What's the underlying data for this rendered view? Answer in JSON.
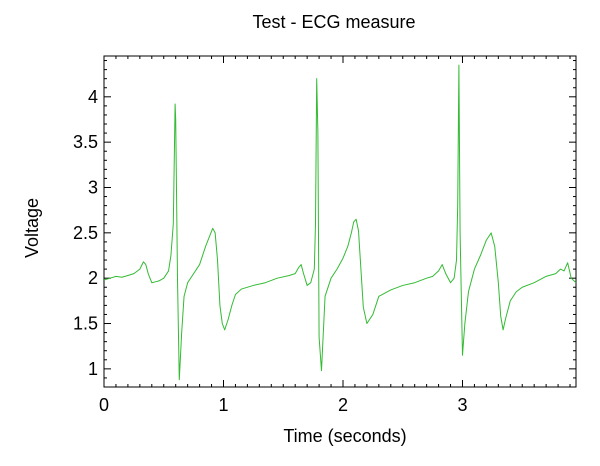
{
  "chart_data": {
    "type": "line",
    "title": "Test - ECG measure",
    "xlabel": "Time (seconds)",
    "ylabel": "Voltage",
    "xlim": [
      0,
      3.95
    ],
    "ylim": [
      0.8,
      4.45
    ],
    "grid": false,
    "legend": "none",
    "x_ticks": [
      0,
      1,
      2,
      3
    ],
    "x_tick_labels": [
      "0",
      "1",
      "2",
      "3"
    ],
    "y_ticks": [
      1,
      1.5,
      2,
      2.5,
      3,
      3.5,
      4
    ],
    "y_tick_labels": [
      "1",
      "1.5",
      "2",
      "2.5",
      "3",
      "3.5",
      "4"
    ],
    "colors": {
      "series": "#33bb33",
      "axes": "#000000"
    },
    "series": [
      {
        "x": [
          0.0,
          0.05,
          0.1,
          0.15,
          0.2,
          0.25,
          0.3,
          0.33,
          0.35,
          0.37,
          0.4,
          0.43,
          0.46,
          0.5,
          0.54,
          0.56,
          0.58,
          0.595,
          0.6,
          0.615,
          0.63,
          0.65,
          0.67,
          0.7,
          0.75,
          0.8,
          0.85,
          0.88,
          0.91,
          0.93,
          0.95,
          0.97,
          0.99,
          1.01,
          1.04,
          1.07,
          1.1,
          1.15,
          1.25,
          1.35,
          1.45,
          1.55,
          1.6,
          1.63,
          1.65,
          1.67,
          1.7,
          1.73,
          1.76,
          1.77,
          1.78,
          1.79,
          1.8,
          1.82,
          1.85,
          1.9,
          1.95,
          2.0,
          2.04,
          2.07,
          2.09,
          2.11,
          2.13,
          2.15,
          2.17,
          2.2,
          2.25,
          2.3,
          2.4,
          2.5,
          2.6,
          2.7,
          2.75,
          2.8,
          2.83,
          2.86,
          2.9,
          2.93,
          2.95,
          2.96,
          2.97,
          2.98,
          3.0,
          3.02,
          3.05,
          3.1,
          3.15,
          3.2,
          3.24,
          3.27,
          3.3,
          3.32,
          3.34,
          3.36,
          3.4,
          3.45,
          3.5,
          3.6,
          3.7,
          3.78,
          3.82,
          3.85,
          3.88,
          3.91,
          3.95
        ],
        "values": [
          1.98,
          2.0,
          2.02,
          2.01,
          2.03,
          2.05,
          2.1,
          2.18,
          2.15,
          2.05,
          1.95,
          1.96,
          1.97,
          2.0,
          2.08,
          2.25,
          2.6,
          3.92,
          3.75,
          2.0,
          0.88,
          1.4,
          1.8,
          1.95,
          2.05,
          2.15,
          2.35,
          2.45,
          2.55,
          2.5,
          2.2,
          1.7,
          1.5,
          1.43,
          1.55,
          1.7,
          1.82,
          1.88,
          1.92,
          1.95,
          2.0,
          2.03,
          2.05,
          2.12,
          2.15,
          2.05,
          1.92,
          1.95,
          2.1,
          2.6,
          4.2,
          3.6,
          1.35,
          0.98,
          1.8,
          2.0,
          2.1,
          2.22,
          2.35,
          2.5,
          2.62,
          2.65,
          2.52,
          2.1,
          1.68,
          1.5,
          1.6,
          1.8,
          1.87,
          1.92,
          1.95,
          2.0,
          2.02,
          2.08,
          2.15,
          2.05,
          1.95,
          2.0,
          2.2,
          2.8,
          4.35,
          2.5,
          1.15,
          1.5,
          1.85,
          2.1,
          2.25,
          2.42,
          2.5,
          2.35,
          1.95,
          1.58,
          1.43,
          1.55,
          1.75,
          1.85,
          1.9,
          1.95,
          2.02,
          2.05,
          2.1,
          2.08,
          2.17,
          2.0,
          1.95
        ]
      }
    ]
  }
}
